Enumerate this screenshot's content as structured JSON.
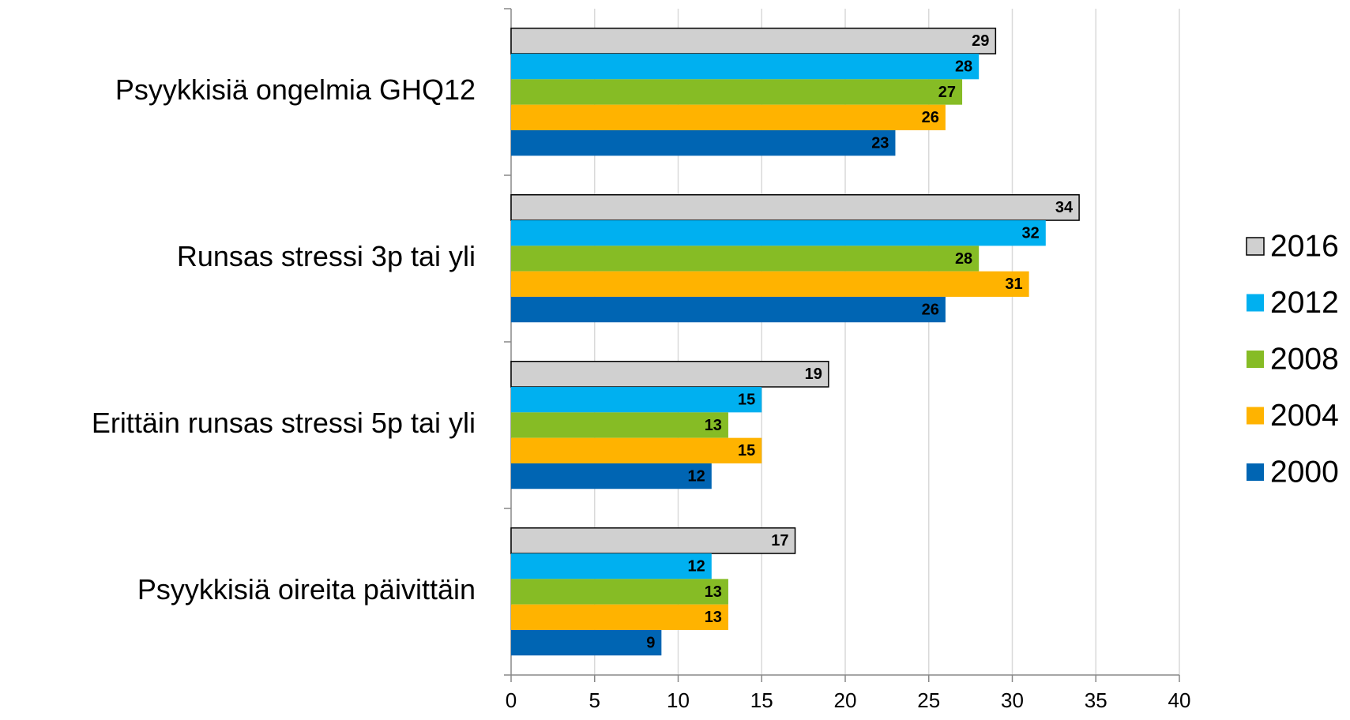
{
  "chart_data": {
    "type": "barh",
    "categories": [
      "Psyykkisiä ongelmia GHQ12",
      "Runsas stressi 3p tai yli",
      "Erittäin runsas stressi 5p tai yli",
      "Psyykkisiä oireita päivittäin"
    ],
    "series": [
      {
        "name": "2016",
        "color": "#d0d0d0",
        "edgecolor": "#000000",
        "values": [
          29,
          34,
          19,
          17
        ]
      },
      {
        "name": "2012",
        "color": "#00b0f0",
        "values": [
          28,
          32,
          15,
          12
        ]
      },
      {
        "name": "2008",
        "color": "#86bc25",
        "values": [
          27,
          28,
          13,
          13
        ]
      },
      {
        "name": "2004",
        "color": "#ffb300",
        "values": [
          26,
          31,
          15,
          13
        ]
      },
      {
        "name": "2000",
        "color": "#0065b3",
        "values": [
          23,
          26,
          12,
          9
        ]
      }
    ],
    "xlim": [
      0,
      40
    ],
    "xticks": [
      0,
      5,
      10,
      15,
      20,
      25,
      30,
      35,
      40
    ],
    "grid": true,
    "legend": "right"
  }
}
